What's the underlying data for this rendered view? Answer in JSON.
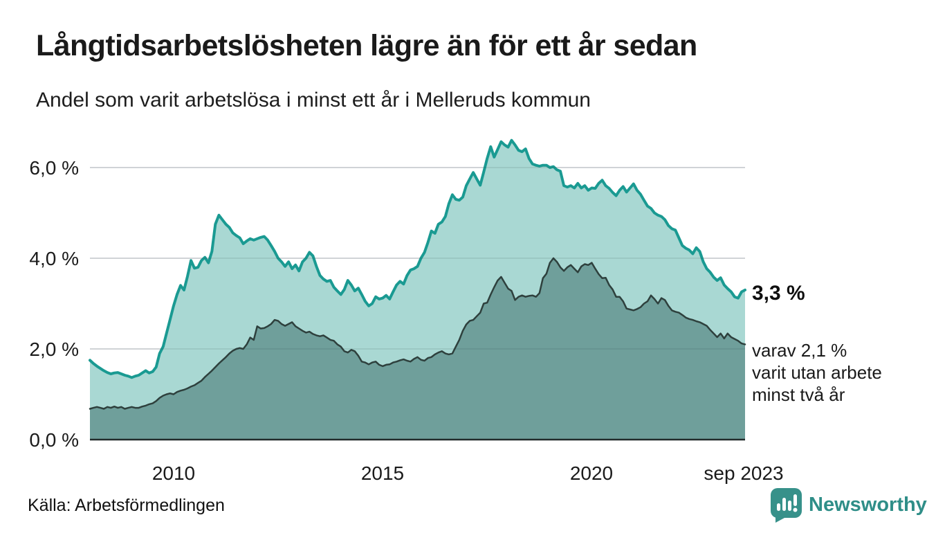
{
  "header": {
    "title": "Långtidsarbetslösheten lägre än för ett år sedan",
    "subtitle": "Andel som varit arbetslösa i minst ett år i Melleruds kommun"
  },
  "footer": {
    "source": "Källa: Arbetsförmedlingen",
    "brand_name": "Newsworthy",
    "brand_color": "#2f8e88"
  },
  "chart_data": {
    "type": "area",
    "title": "Långtidsarbetslösheten lägre än för ett år sedan",
    "subtitle": "Andel som varit arbetslösa i minst ett år i Melleruds kommun",
    "unit": "%",
    "frequency": "monthly",
    "x_start": "2008-01",
    "x_end": "2023-09",
    "ylim": [
      0,
      6.8
    ],
    "grid": "horizontal",
    "grid_color": "#e4e5e8",
    "grid_overlay_color": "rgba(40,60,60,0.10)",
    "axis_color": "#222b2b",
    "yticks": [
      {
        "v": 0,
        "label": "0,0 %"
      },
      {
        "v": 2,
        "label": "2,0 %"
      },
      {
        "v": 4,
        "label": "4,0 %"
      },
      {
        "v": 6,
        "label": "6,0 %"
      }
    ],
    "xticks": [
      {
        "month_index": 24,
        "label": "2010"
      },
      {
        "month_index": 84,
        "label": "2015"
      },
      {
        "month_index": 144,
        "label": "2020"
      },
      {
        "month_index": 188,
        "label": "sep 2023"
      }
    ],
    "annotations": {
      "end_value": "3,3 %",
      "secondary": [
        "varav 2,1 %",
        "varit utan arbete",
        "minst två år"
      ]
    },
    "series": [
      {
        "name": "Arbetslösa minst ett år",
        "last_value": 3.3,
        "line_color": "#1a9a92",
        "fill_color": "#a9d8d3",
        "line_width": 4,
        "values": [
          1.75,
          1.68,
          1.62,
          1.57,
          1.52,
          1.48,
          1.45,
          1.47,
          1.48,
          1.45,
          1.42,
          1.4,
          1.37,
          1.4,
          1.42,
          1.47,
          1.52,
          1.47,
          1.5,
          1.6,
          1.9,
          2.05,
          2.35,
          2.65,
          2.95,
          3.2,
          3.4,
          3.3,
          3.6,
          3.95,
          3.78,
          3.8,
          3.95,
          4.02,
          3.9,
          4.15,
          4.75,
          4.95,
          4.85,
          4.75,
          4.68,
          4.56,
          4.5,
          4.45,
          4.32,
          4.38,
          4.43,
          4.4,
          4.43,
          4.46,
          4.48,
          4.4,
          4.28,
          4.15,
          4.0,
          3.92,
          3.82,
          3.92,
          3.77,
          3.85,
          3.72,
          3.92,
          4.0,
          4.13,
          4.05,
          3.82,
          3.62,
          3.54,
          3.49,
          3.51,
          3.36,
          3.28,
          3.2,
          3.31,
          3.51,
          3.41,
          3.28,
          3.34,
          3.2,
          3.05,
          2.95,
          3.0,
          3.15,
          3.1,
          3.12,
          3.18,
          3.1,
          3.26,
          3.41,
          3.49,
          3.43,
          3.62,
          3.74,
          3.77,
          3.82,
          4.0,
          4.13,
          4.35,
          4.6,
          4.55,
          4.75,
          4.8,
          4.92,
          5.2,
          5.4,
          5.3,
          5.28,
          5.35,
          5.6,
          5.75,
          5.89,
          5.75,
          5.61,
          5.9,
          6.2,
          6.46,
          6.23,
          6.4,
          6.57,
          6.5,
          6.45,
          6.6,
          6.5,
          6.38,
          6.35,
          6.41,
          6.2,
          6.08,
          6.05,
          6.03,
          6.05,
          6.05,
          6.0,
          6.02,
          5.95,
          5.92,
          5.6,
          5.57,
          5.6,
          5.55,
          5.65,
          5.55,
          5.6,
          5.5,
          5.55,
          5.54,
          5.65,
          5.72,
          5.6,
          5.54,
          5.45,
          5.38,
          5.5,
          5.58,
          5.46,
          5.55,
          5.64,
          5.5,
          5.41,
          5.28,
          5.15,
          5.1,
          5.0,
          4.95,
          4.92,
          4.85,
          4.72,
          4.65,
          4.62,
          4.45,
          4.28,
          4.22,
          4.18,
          4.1,
          4.23,
          4.15,
          3.92,
          3.77,
          3.69,
          3.58,
          3.51,
          3.57,
          3.41,
          3.33,
          3.26,
          3.15,
          3.12,
          3.26,
          3.3
        ]
      },
      {
        "name": "Varav utan arbete minst två år",
        "last_value": 2.1,
        "line_color": "#2e403d",
        "fill_color": "#6f9f9b",
        "line_width": 2.5,
        "values": [
          0.68,
          0.7,
          0.72,
          0.7,
          0.68,
          0.72,
          0.7,
          0.73,
          0.7,
          0.72,
          0.68,
          0.7,
          0.72,
          0.7,
          0.7,
          0.73,
          0.75,
          0.78,
          0.8,
          0.85,
          0.92,
          0.97,
          1.0,
          1.02,
          1.0,
          1.05,
          1.08,
          1.1,
          1.13,
          1.17,
          1.2,
          1.25,
          1.3,
          1.38,
          1.45,
          1.52,
          1.6,
          1.68,
          1.75,
          1.82,
          1.9,
          1.96,
          2.0,
          2.02,
          2.0,
          2.1,
          2.25,
          2.2,
          2.5,
          2.45,
          2.46,
          2.5,
          2.55,
          2.64,
          2.62,
          2.55,
          2.51,
          2.55,
          2.59,
          2.5,
          2.45,
          2.4,
          2.36,
          2.38,
          2.33,
          2.3,
          2.28,
          2.3,
          2.25,
          2.2,
          2.18,
          2.1,
          2.05,
          1.95,
          1.92,
          1.98,
          1.95,
          1.85,
          1.72,
          1.7,
          1.66,
          1.7,
          1.72,
          1.65,
          1.62,
          1.65,
          1.66,
          1.7,
          1.72,
          1.75,
          1.77,
          1.74,
          1.72,
          1.78,
          1.82,
          1.76,
          1.74,
          1.8,
          1.82,
          1.88,
          1.92,
          1.95,
          1.9,
          1.88,
          1.9,
          2.05,
          2.2,
          2.4,
          2.54,
          2.62,
          2.64,
          2.72,
          2.8,
          3.0,
          3.02,
          3.2,
          3.36,
          3.51,
          3.59,
          3.46,
          3.33,
          3.28,
          3.08,
          3.15,
          3.18,
          3.15,
          3.17,
          3.18,
          3.15,
          3.23,
          3.56,
          3.66,
          3.9,
          4.0,
          3.92,
          3.8,
          3.72,
          3.8,
          3.85,
          3.77,
          3.69,
          3.82,
          3.87,
          3.85,
          3.9,
          3.77,
          3.65,
          3.56,
          3.57,
          3.41,
          3.31,
          3.15,
          3.15,
          3.05,
          2.89,
          2.87,
          2.85,
          2.88,
          2.92,
          3.0,
          3.05,
          3.18,
          3.1,
          3.0,
          3.12,
          3.08,
          2.95,
          2.85,
          2.82,
          2.8,
          2.75,
          2.69,
          2.66,
          2.64,
          2.61,
          2.59,
          2.55,
          2.51,
          2.42,
          2.34,
          2.26,
          2.34,
          2.23,
          2.34,
          2.26,
          2.22,
          2.18,
          2.12,
          2.1
        ]
      }
    ]
  }
}
